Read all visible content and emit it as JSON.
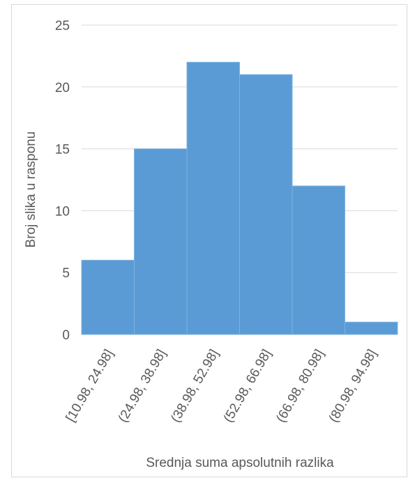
{
  "chart_data": {
    "type": "bar",
    "title": "",
    "xlabel": "Srednja suma apsolutnih razlika",
    "ylabel": "Broj slika u rasponu",
    "categories": [
      "[10.98, 24.98]",
      "(24.98, 38.98]",
      "(38.98, 52.98]",
      "(52.98, 66.98]",
      "(66.98, 80.98]",
      "(80.98, 94.98]"
    ],
    "values": [
      6,
      15,
      22,
      21,
      12,
      1
    ],
    "ylim": [
      0,
      25
    ],
    "yticks": [
      0,
      5,
      10,
      15,
      20,
      25
    ],
    "grid": true,
    "legend": "none",
    "colors": {
      "bar": "#5b9bd5",
      "grid": "#d9d9d9",
      "text": "#595959"
    }
  }
}
